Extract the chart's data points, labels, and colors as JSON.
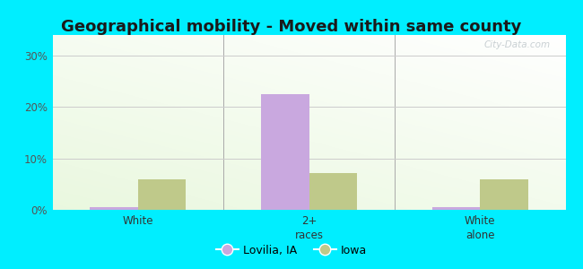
{
  "title": "Geographical mobility - Moved within same county",
  "categories": [
    "White",
    "2+\nraces",
    "White\nalone"
  ],
  "series": [
    {
      "label": "Lovilia, IA",
      "values": [
        0.5,
        22.5,
        0.5
      ],
      "color": "#c9a8df"
    },
    {
      "label": "Iowa",
      "values": [
        6.0,
        7.2,
        6.0
      ],
      "color": "#bfc98a"
    }
  ],
  "ylim": [
    0,
    34
  ],
  "yticks": [
    0,
    10,
    20,
    30
  ],
  "ytick_labels": [
    "0%",
    "10%",
    "20%",
    "30%"
  ],
  "bar_width": 0.28,
  "background_color": "#00eeff",
  "grid_color": "#cccccc",
  "title_fontsize": 13,
  "watermark": "City-Data.com"
}
